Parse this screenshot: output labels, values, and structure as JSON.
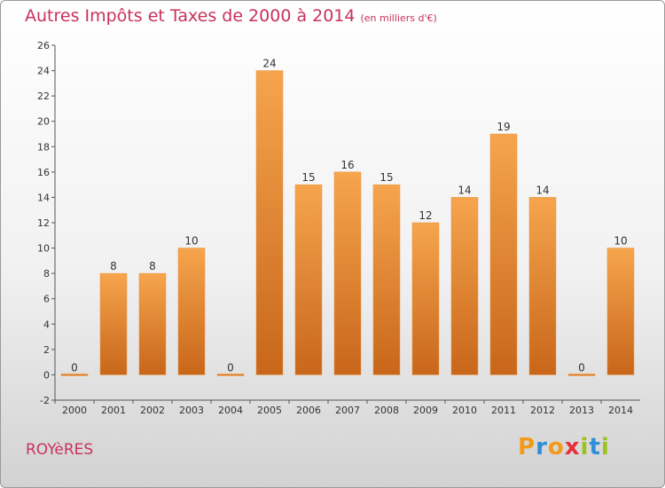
{
  "title": "Autres Impôts et Taxes de 2000 à 2014",
  "unit": "(en milliers d'€)",
  "place": "ROYèRES",
  "logo": {
    "letters": [
      "P",
      "r",
      "o",
      "x",
      "i",
      "t",
      "i"
    ],
    "colors": [
      "#f29a1a",
      "#2f8fd6",
      "#f29a1a",
      "#e8303a",
      "#9bc31b",
      "#2f8fd6",
      "#9bc31b"
    ]
  },
  "chart_data": {
    "type": "bar",
    "categories": [
      "2000",
      "2001",
      "2002",
      "2003",
      "2004",
      "2005",
      "2006",
      "2007",
      "2008",
      "2009",
      "2010",
      "2011",
      "2012",
      "2013",
      "2014"
    ],
    "values": [
      0,
      8,
      8,
      10,
      0,
      24,
      15,
      16,
      15,
      12,
      14,
      19,
      14,
      0,
      10
    ],
    "ylim": [
      -2,
      26
    ],
    "yticks": [
      -2,
      0,
      2,
      4,
      6,
      8,
      10,
      12,
      14,
      16,
      18,
      20,
      22,
      24,
      26
    ],
    "grid": false,
    "bar_color": "#f29a3f"
  }
}
